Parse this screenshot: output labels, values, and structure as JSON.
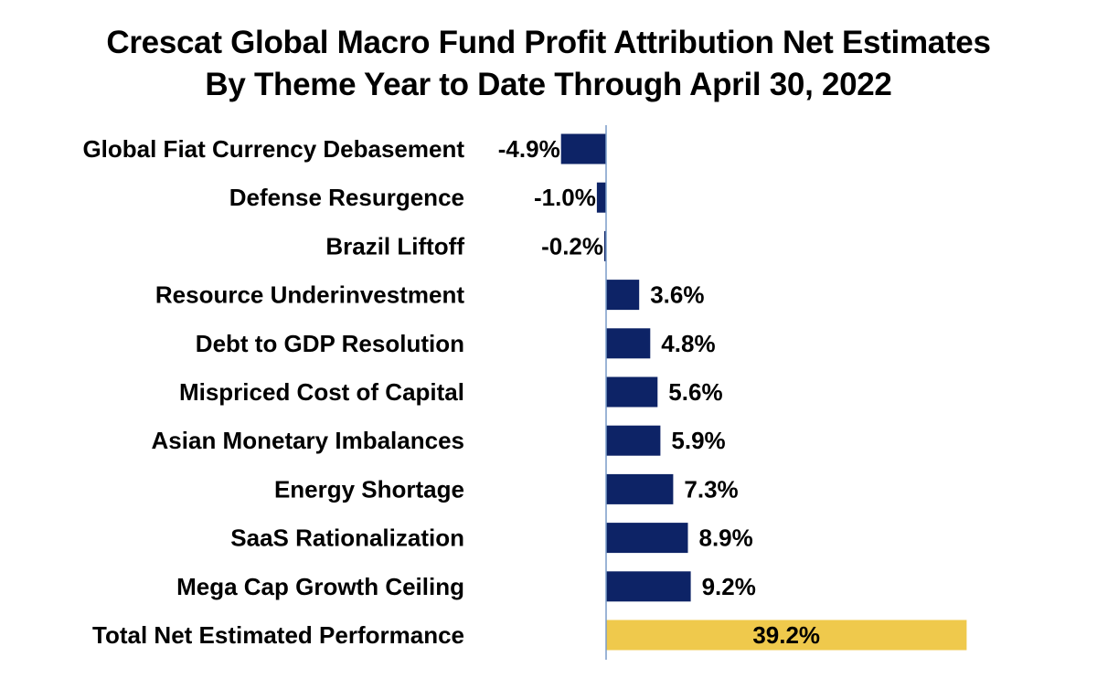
{
  "chart_data": {
    "type": "bar",
    "orientation": "horizontal",
    "title_lines": [
      "Crescat Global Macro Fund Profit Attribution Net Estimates",
      "By Theme Year to Date Through April 30, 2022"
    ],
    "categories": [
      "Global Fiat Currency Debasement",
      "Defense Resurgence",
      "Brazil Liftoff",
      "Resource Underinvestment",
      "Debt to GDP Resolution",
      "Mispriced Cost of Capital",
      "Asian Monetary Imbalances",
      "Energy Shortage",
      "SaaS Rationalization",
      "Mega Cap Growth Ceiling",
      "Total Net Estimated Performance"
    ],
    "values": [
      -4.9,
      -1.0,
      -0.2,
      3.6,
      4.8,
      5.6,
      5.9,
      7.3,
      8.9,
      9.2,
      39.2
    ],
    "value_labels": [
      "-4.9%",
      "-1.0%",
      "-0.2%",
      "3.6%",
      "4.8%",
      "5.6%",
      "5.9%",
      "7.3%",
      "8.9%",
      "9.2%",
      "39.2%"
    ],
    "unit": "%",
    "highlight_category": "Total Net Estimated Performance",
    "colors": {
      "bar": "#0d2366",
      "highlight": "#efc94c",
      "axis": "#7a9cc8"
    },
    "xlim": [
      -4.9,
      39.2
    ],
    "grid": false,
    "legend": "none"
  }
}
